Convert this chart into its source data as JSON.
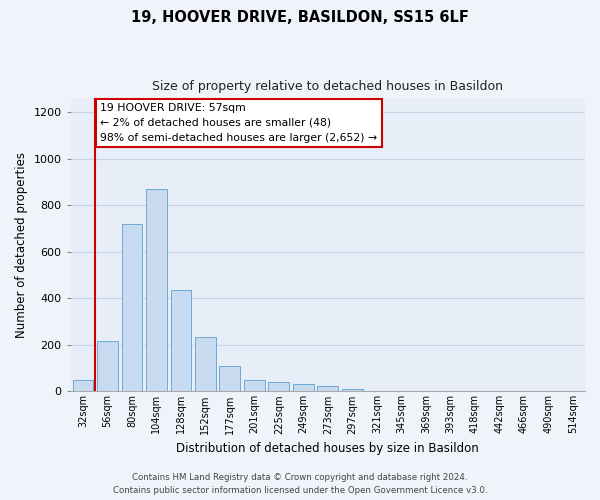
{
  "title": "19, HOOVER DRIVE, BASILDON, SS15 6LF",
  "subtitle": "Size of property relative to detached houses in Basildon",
  "xlabel": "Distribution of detached houses by size in Basildon",
  "ylabel": "Number of detached properties",
  "bar_color": "#c8daf0",
  "bar_edge_color": "#6aaad4",
  "categories": [
    "32sqm",
    "56sqm",
    "80sqm",
    "104sqm",
    "128sqm",
    "152sqm",
    "177sqm",
    "201sqm",
    "225sqm",
    "249sqm",
    "273sqm",
    "297sqm",
    "321sqm",
    "345sqm",
    "369sqm",
    "393sqm",
    "418sqm",
    "442sqm",
    "466sqm",
    "490sqm",
    "514sqm"
  ],
  "values": [
    50,
    215,
    720,
    870,
    438,
    232,
    110,
    48,
    42,
    32,
    23,
    12,
    0,
    0,
    0,
    0,
    0,
    0,
    0,
    0,
    0
  ],
  "ylim": [
    0,
    1260
  ],
  "yticks": [
    0,
    200,
    400,
    600,
    800,
    1000,
    1200
  ],
  "property_line_x": 0.5,
  "annotation_text": "19 HOOVER DRIVE: 57sqm\n← 2% of detached houses are smaller (48)\n98% of semi-detached houses are larger (2,652) →",
  "annotation_box_color": "#ffffff",
  "annotation_box_edge": "#cc0000",
  "vline_color": "#cc0000",
  "grid_color": "#c8d4e8",
  "bg_color": "#e8eef8",
  "fig_color": "#f0f4fa",
  "footer": "Contains HM Land Registry data © Crown copyright and database right 2024.\nContains public sector information licensed under the Open Government Licence v3.0."
}
